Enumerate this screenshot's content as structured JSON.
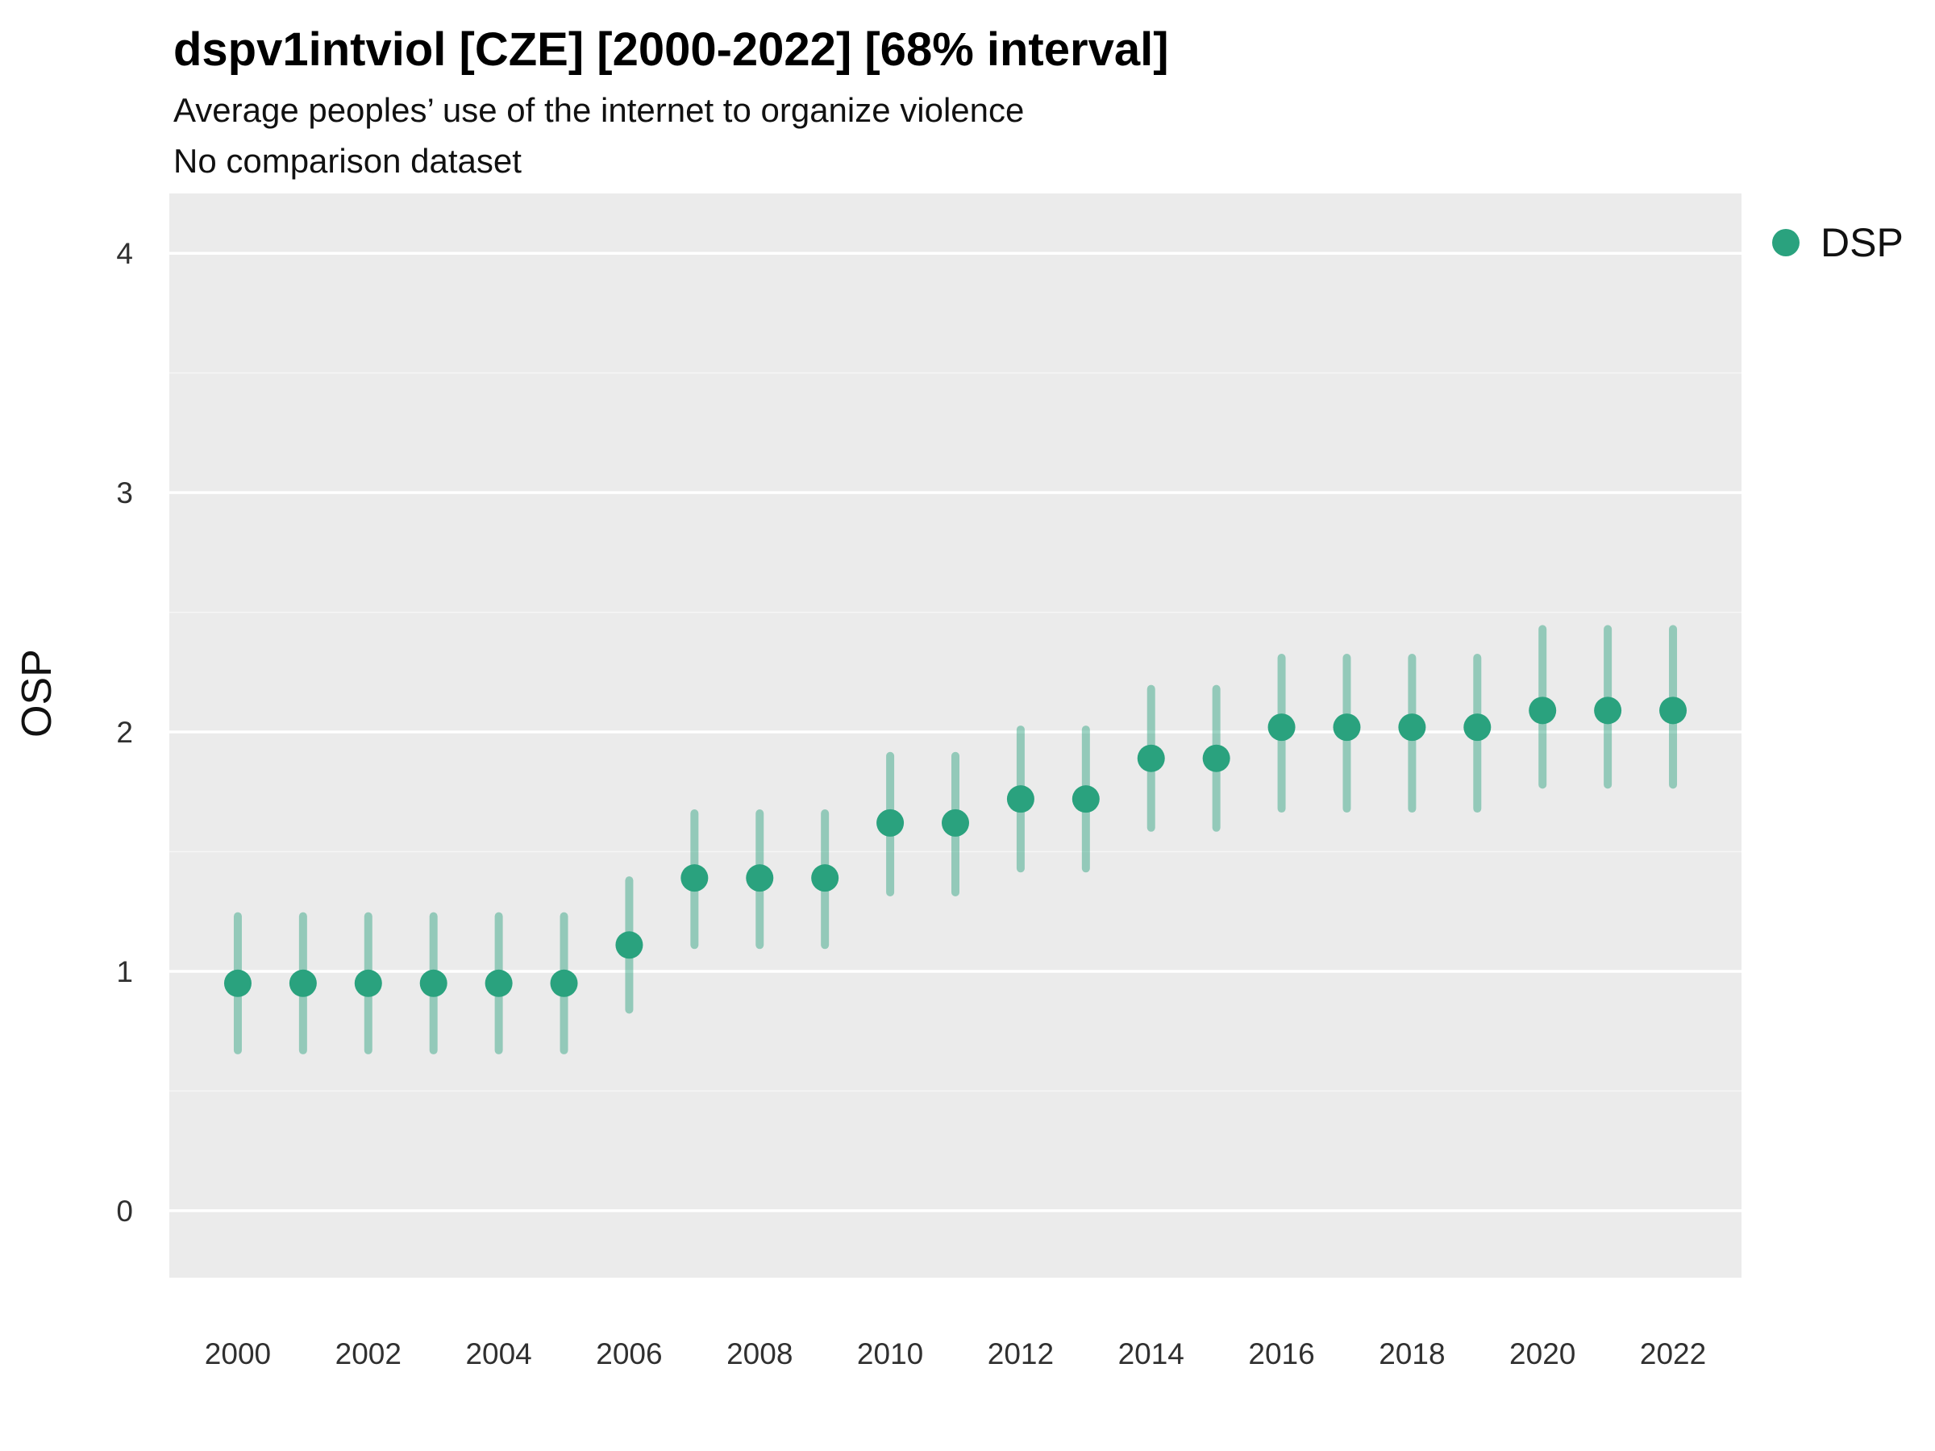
{
  "chart_data": {
    "type": "scatter",
    "title": "dspv1intviol [CZE] [2000-2022] [68% interval]",
    "subtitle": "Average peoples’ use of the internet to organize violence",
    "note": "No comparison dataset",
    "ylabel": "OSP",
    "xlabel": "",
    "ylim": [
      -0.28,
      4.25
    ],
    "xlim": [
      1998.95,
      2023.05
    ],
    "y_ticks": [
      0,
      1,
      2,
      3,
      4
    ],
    "x_ticks": [
      2000,
      2002,
      2004,
      2006,
      2008,
      2010,
      2012,
      2014,
      2016,
      2018,
      2020,
      2022
    ],
    "grid": "horizontal-major",
    "legend_position": "right",
    "panel_background": "#ebebeb",
    "gridline_color": "#ffffff",
    "point_color": "#2aa27e",
    "interval_color": "#2aa27e",
    "interval_opacity": 0.45,
    "legend": [
      {
        "label": "DSP",
        "color": "#2aa27e"
      }
    ],
    "series": [
      {
        "name": "DSP",
        "x": [
          2000,
          2001,
          2002,
          2003,
          2004,
          2005,
          2006,
          2007,
          2008,
          2009,
          2010,
          2011,
          2012,
          2013,
          2014,
          2015,
          2016,
          2017,
          2018,
          2019,
          2020,
          2021,
          2022
        ],
        "y": [
          0.95,
          0.95,
          0.95,
          0.95,
          0.95,
          0.95,
          1.11,
          1.39,
          1.39,
          1.39,
          1.62,
          1.62,
          1.72,
          1.72,
          1.89,
          1.89,
          2.02,
          2.02,
          2.02,
          2.02,
          2.09,
          2.09,
          2.09
        ],
        "lo": [
          0.67,
          0.67,
          0.67,
          0.67,
          0.67,
          0.67,
          0.84,
          1.11,
          1.11,
          1.11,
          1.33,
          1.33,
          1.43,
          1.43,
          1.6,
          1.6,
          1.68,
          1.68,
          1.68,
          1.68,
          1.78,
          1.78,
          1.78
        ],
        "hi": [
          1.23,
          1.23,
          1.23,
          1.23,
          1.23,
          1.23,
          1.38,
          1.66,
          1.66,
          1.66,
          1.9,
          1.9,
          2.01,
          2.01,
          2.18,
          2.18,
          2.31,
          2.31,
          2.31,
          2.31,
          2.43,
          2.43,
          2.43
        ]
      }
    ]
  }
}
